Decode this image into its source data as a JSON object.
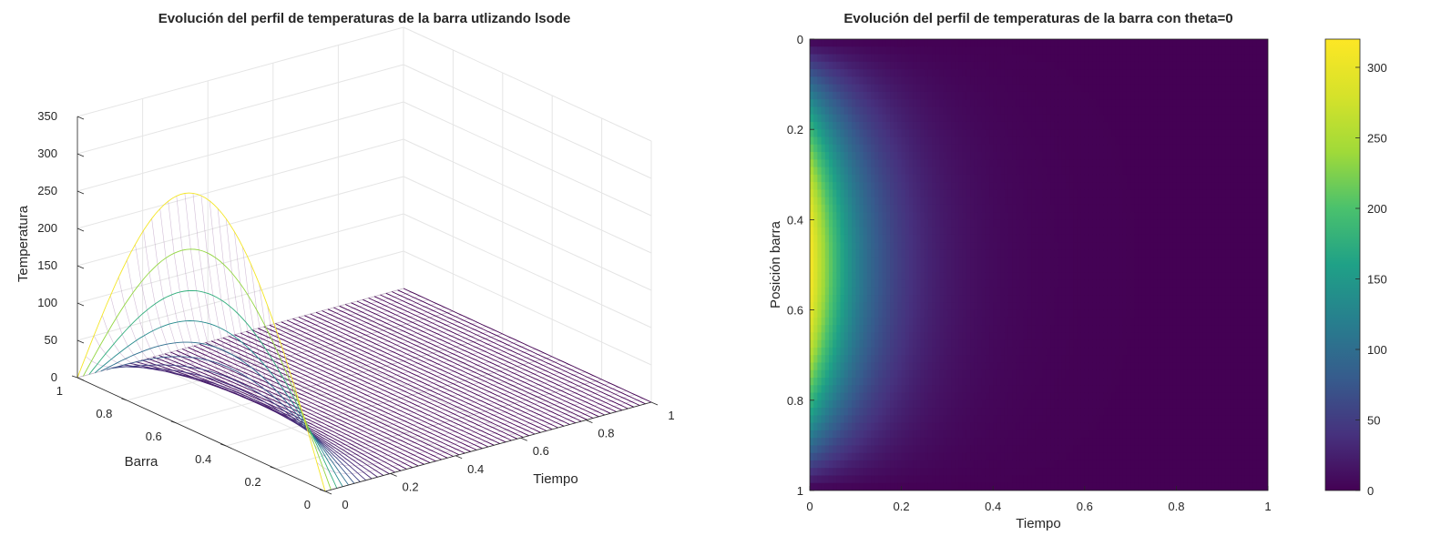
{
  "chart_data": [
    {
      "type": "surface3d",
      "title": "Evolución del perfil de temperaturas de la barra utlizando lsode",
      "xlabel": "Tiempo",
      "ylabel": "Barra",
      "zlabel": "Temperatura",
      "xlim": [
        0,
        1
      ],
      "ylim": [
        0,
        1
      ],
      "zlim": [
        0,
        350
      ],
      "xticks": [
        "0",
        "0.2",
        "0.4",
        "0.6",
        "0.8",
        "1"
      ],
      "yticks": [
        "0",
        "0.2",
        "0.4",
        "0.6",
        "0.8",
        "1"
      ],
      "zticks": [
        "0",
        "50",
        "100",
        "150",
        "200",
        "250",
        "300",
        "350"
      ],
      "grid": true,
      "peak_temperature": 320,
      "colormap": "viridis",
      "mesh_color": "#9b6fa6"
    },
    {
      "type": "heatmap",
      "title": "Evolución del perfil de temperaturas de la barra con theta=0",
      "xlabel": "Tiempo",
      "ylabel": "Posición barra",
      "xlim": [
        0,
        1
      ],
      "ylim": [
        0,
        1
      ],
      "xticks": [
        "0",
        "0.2",
        "0.4",
        "0.6",
        "0.8",
        "1"
      ],
      "yticks": [
        "0",
        "0.2",
        "0.4",
        "0.6",
        "0.8",
        "1"
      ],
      "colorbar_range": [
        0,
        320
      ],
      "colorbar_ticks": [
        "0",
        "50",
        "100",
        "150",
        "200",
        "250",
        "300"
      ],
      "peak_temperature": 320,
      "colormap": "viridis"
    }
  ]
}
